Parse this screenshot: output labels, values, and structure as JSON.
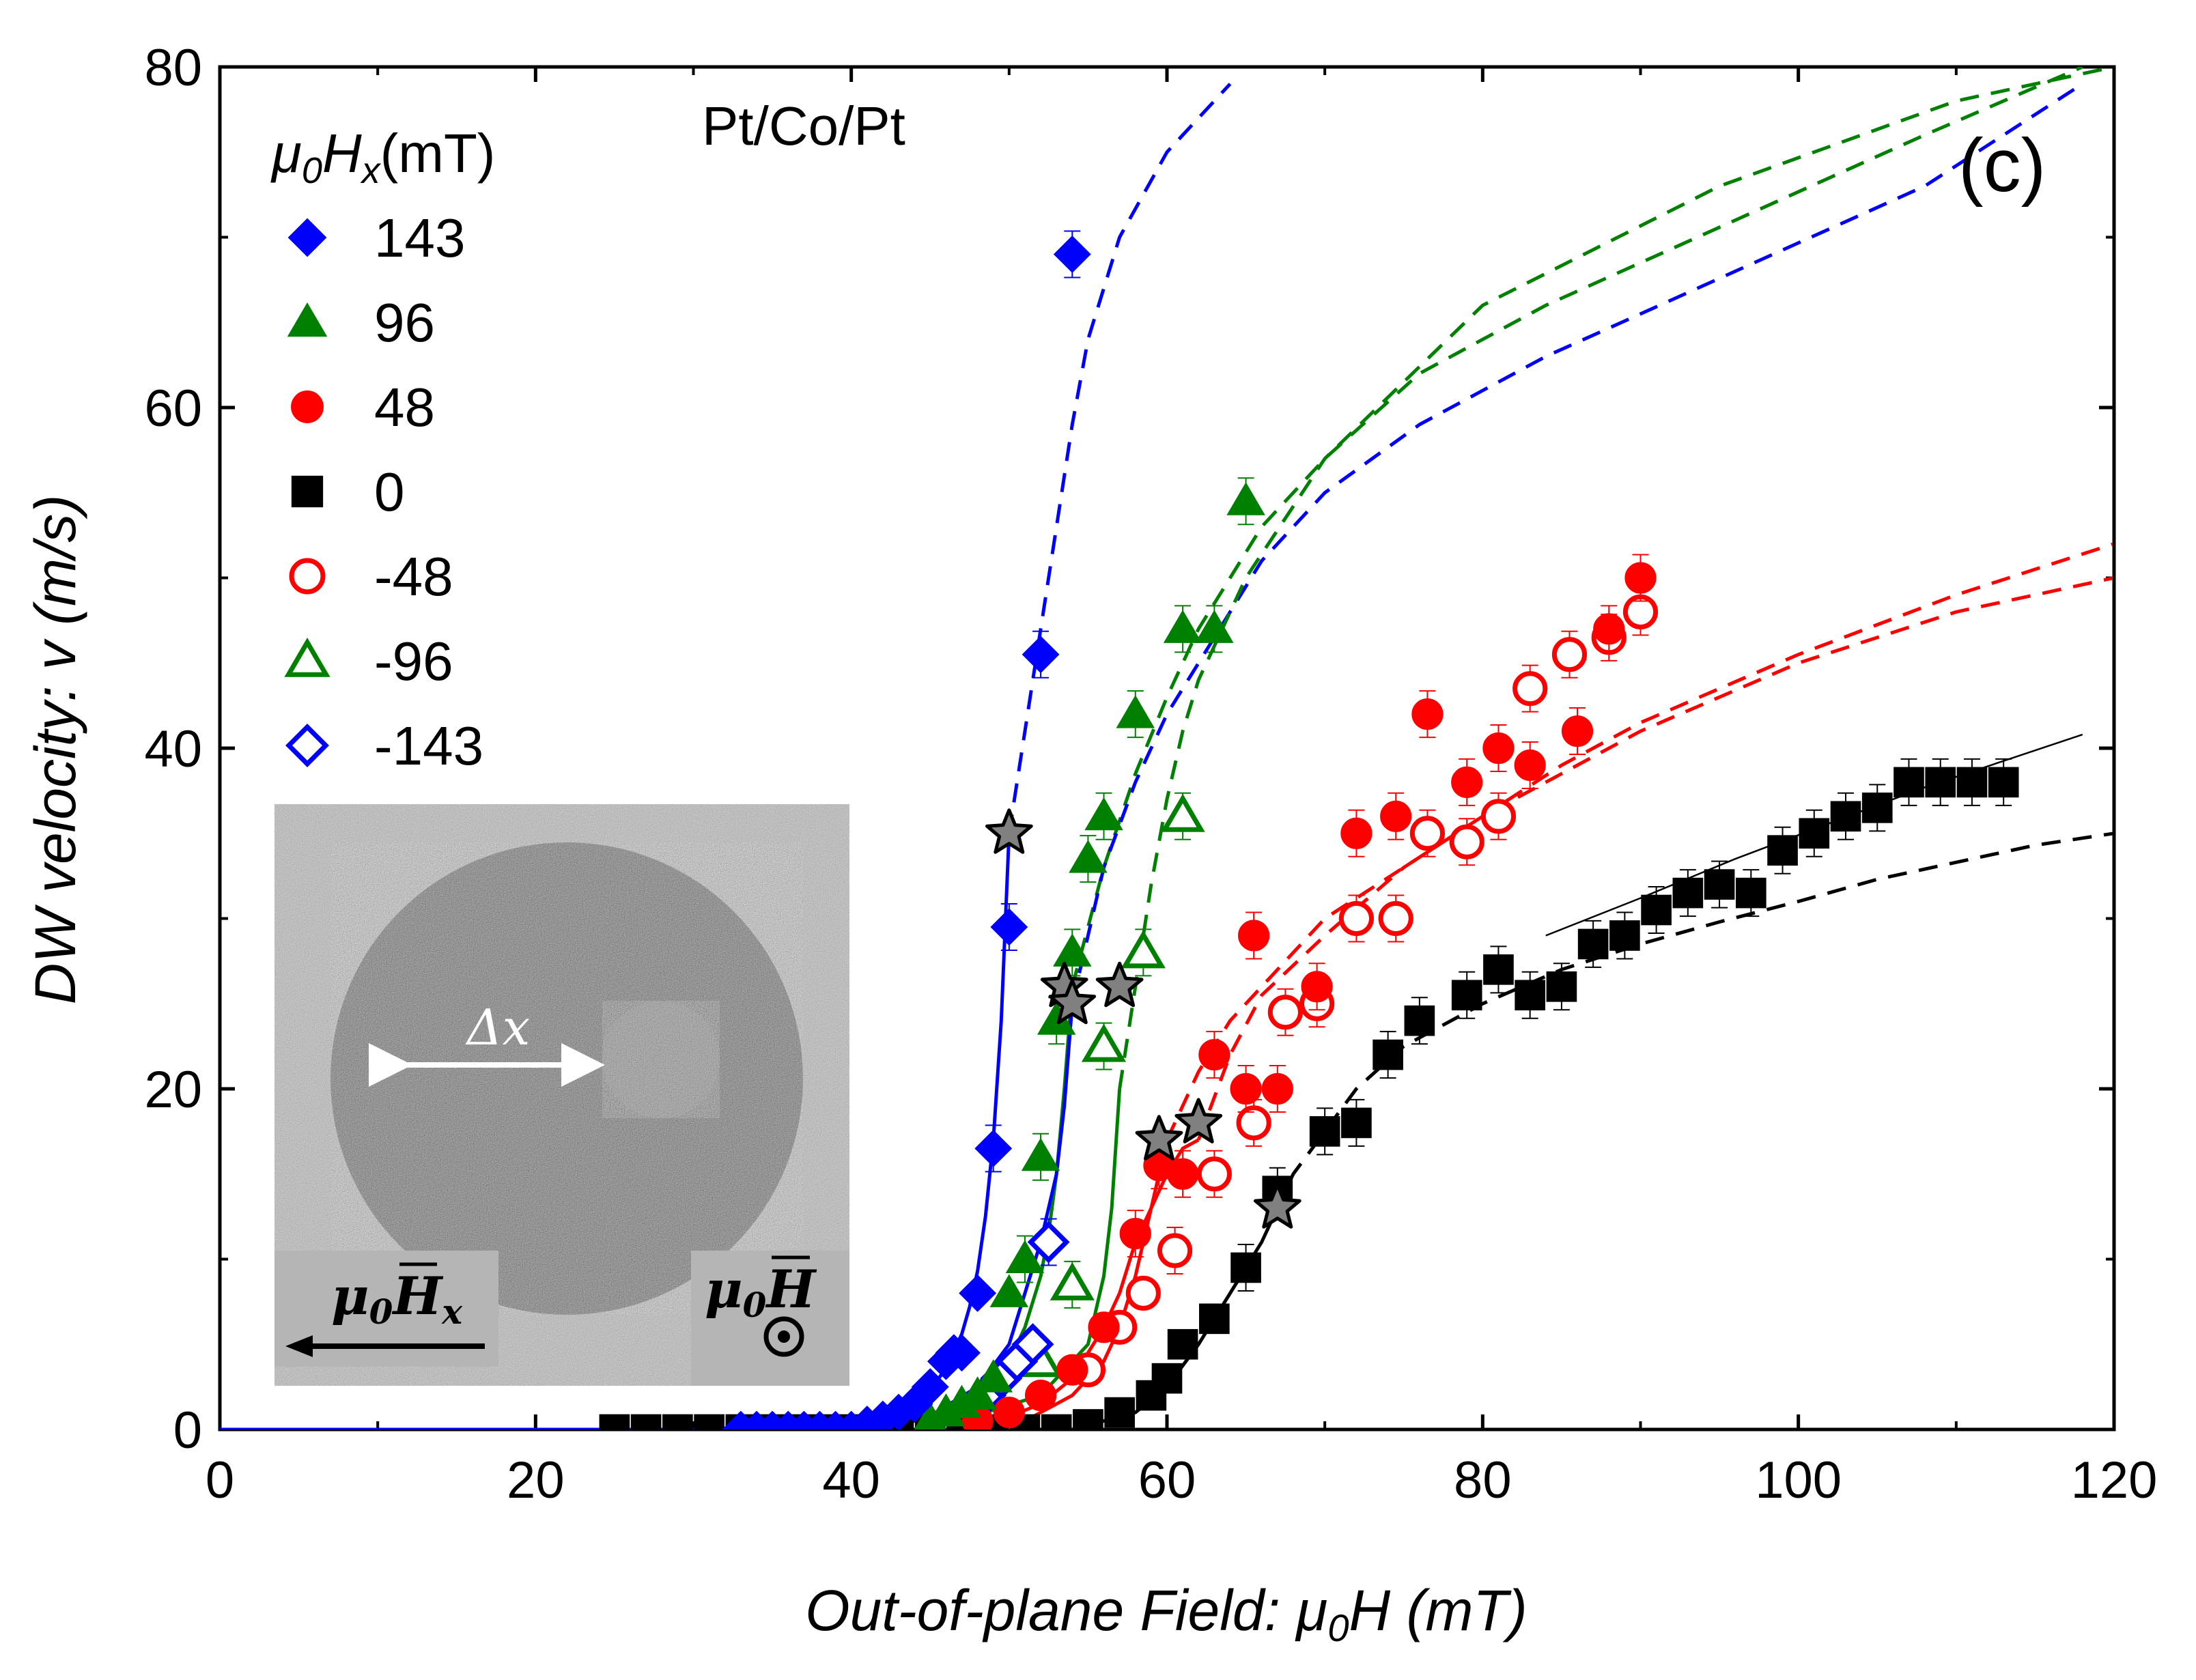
{
  "chart_data": {
    "type": "scatter",
    "title": "",
    "sample_label": "Pt/Co/Pt",
    "panel_label": "(c)",
    "xlabel": "Out-of-plane Field: μ0H (mT)",
    "xlabel_parts": {
      "before": "Out-of-plane Field: ",
      "mu": "μ",
      "sub": "0",
      "after": "H (mT)"
    },
    "ylabel": "DW velocity: v (m/s)",
    "xlim": [
      0,
      120
    ],
    "ylim": [
      0,
      80
    ],
    "xticks": [
      "0",
      "20",
      "40",
      "60",
      "80",
      "100",
      "120"
    ],
    "yticks": [
      "0",
      "20",
      "40",
      "60",
      "80"
    ],
    "legend_title": {
      "mu": "μ",
      "sub0": "0",
      "H": "H",
      "subx": "x",
      "unit": "(mT)"
    },
    "legend_placement": "top-left",
    "colors": {
      "blue": "#0000ff",
      "green": "#008000",
      "red": "#ff0000",
      "black": "#000000",
      "star": "#808080"
    },
    "series": [
      {
        "name": "143",
        "color": "#0000ff",
        "marker": "diamond",
        "filled": true,
        "x": [
          33,
          34,
          35,
          36,
          37,
          38,
          39,
          40,
          41,
          42,
          43,
          44,
          45,
          46,
          46.5,
          47,
          48,
          49,
          50,
          52,
          54
        ],
        "y": [
          0,
          0,
          0,
          0,
          0,
          0,
          0,
          0,
          0.3,
          0.6,
          1,
          1.5,
          2.5,
          4,
          4.5,
          4.5,
          8,
          16.5,
          29.5,
          45.5,
          69
        ]
      },
      {
        "name": "96",
        "color": "#008000",
        "marker": "triangle",
        "filled": true,
        "x": [
          45,
          46,
          47,
          48,
          49,
          50,
          51,
          52,
          53,
          54,
          55,
          56,
          58,
          61,
          63,
          65
        ],
        "y": [
          0.5,
          1,
          1.5,
          2,
          3,
          8,
          10,
          16,
          24,
          28,
          33.5,
          36,
          42,
          47,
          47,
          54.5
        ]
      },
      {
        "name": "48",
        "color": "#ff0000",
        "marker": "circle",
        "filled": true,
        "x": [
          48,
          50,
          52,
          54,
          56,
          58,
          59.5,
          61,
          63,
          65,
          65.5,
          67,
          69.5,
          72,
          74.5,
          76.5,
          79,
          81,
          83,
          86,
          88,
          90
        ],
        "y": [
          0.5,
          1,
          2,
          3.5,
          6,
          11.5,
          15.5,
          15,
          22,
          20,
          29,
          20,
          26,
          35,
          36,
          42,
          38,
          40,
          39,
          41,
          47,
          50
        ]
      },
      {
        "name": "0",
        "color": "#000000",
        "marker": "square",
        "filled": true,
        "x": [
          25,
          27,
          29,
          31,
          33,
          35,
          37,
          39,
          41,
          43,
          45,
          47,
          49,
          51,
          53,
          55,
          57,
          59,
          60,
          61,
          63,
          65,
          67,
          70,
          72,
          74,
          76,
          79,
          81,
          83,
          85,
          87,
          89,
          91,
          93,
          95,
          97,
          99,
          101,
          103,
          105,
          107,
          109,
          111,
          113
        ],
        "y": [
          0,
          0,
          0,
          0,
          0,
          0,
          0,
          0,
          0,
          0,
          0,
          0,
          0,
          0,
          0,
          0.3,
          1,
          2,
          3,
          5,
          6.5,
          9.5,
          14,
          17.5,
          18,
          22,
          24,
          25.5,
          27,
          25.5,
          26,
          28.5,
          29,
          30.5,
          31.5,
          32,
          31.5,
          34,
          35,
          36,
          36.5,
          38,
          38,
          38,
          38
        ]
      },
      {
        "name": "-48",
        "color": "#ff0000",
        "marker": "circle",
        "filled": false,
        "x": [
          55,
          57,
          58.5,
          60.5,
          63,
          65.5,
          67.5,
          69.5,
          72,
          74.5,
          76.5,
          79,
          81,
          83,
          85.5,
          88,
          90
        ],
        "y": [
          3.5,
          6,
          8,
          10.5,
          15,
          18,
          24.5,
          25,
          30,
          30,
          35,
          34.5,
          36,
          43.5,
          45.5,
          46.5,
          48
        ]
      },
      {
        "name": "-96",
        "color": "#008000",
        "marker": "triangle",
        "filled": false,
        "x": [
          52,
          54,
          56,
          58.5,
          61
        ],
        "y": [
          4,
          8.5,
          22.5,
          28,
          36
        ]
      },
      {
        "name": "-143",
        "color": "#0000ff",
        "marker": "diamond",
        "filled": false,
        "x": [
          47,
          48.5,
          49.5,
          50.5,
          51.5,
          52.5
        ],
        "y": [
          1,
          2,
          3,
          4,
          5,
          11
        ]
      }
    ],
    "fit_curves": [
      {
        "color": "#0000ff",
        "style": "solid",
        "x": [
          0,
          30,
          40,
          42,
          44,
          45,
          46,
          47,
          47.5,
          48,
          48.5,
          49,
          49.5,
          50
        ],
        "y": [
          0,
          0,
          0.3,
          0.8,
          1.6,
          2.3,
          3.6,
          5.6,
          7.2,
          9.3,
          12.5,
          17,
          24,
          35
        ]
      },
      {
        "color": "#0000ff",
        "style": "dashed",
        "x": [
          50,
          51,
          52,
          53,
          54,
          55,
          57,
          60,
          64
        ],
        "y": [
          35,
          41,
          47,
          53,
          59,
          64,
          70,
          75,
          79
        ]
      },
      {
        "color": "#008000",
        "style": "solid",
        "x": [
          42,
          46,
          48,
          50,
          51,
          52,
          52.5,
          53,
          53.5,
          54
        ],
        "y": [
          0,
          1,
          2,
          4,
          6,
          9,
          11.5,
          15,
          20,
          26
        ]
      },
      {
        "color": "#008000",
        "style": "dashed",
        "x": [
          54,
          56,
          58,
          60,
          62,
          64,
          66,
          70,
          76,
          84,
          96,
          108,
          118
        ],
        "y": [
          26,
          33,
          38.5,
          43,
          47,
          50,
          53,
          57,
          62,
          66,
          71,
          76,
          80
        ]
      },
      {
        "color": "#0000ff",
        "style": "solid",
        "x": [
          40,
          45,
          48,
          50,
          51,
          52,
          53,
          53.5,
          54
        ],
        "y": [
          0,
          0.8,
          2.5,
          5,
          8,
          11,
          15,
          19,
          25
        ]
      },
      {
        "color": "#0000ff",
        "style": "dashed",
        "x": [
          54,
          56,
          58,
          60,
          62,
          64,
          66,
          70,
          76,
          84,
          96,
          108,
          118
        ],
        "y": [
          25,
          33,
          38,
          42,
          45,
          48,
          51,
          55,
          59,
          63,
          68,
          73,
          79
        ]
      },
      {
        "color": "#008000",
        "style": "solid",
        "x": [
          45,
          52,
          55,
          56,
          56.5,
          57
        ],
        "y": [
          0,
          2,
          5,
          9,
          13,
          20
        ]
      },
      {
        "color": "#008000",
        "style": "dashed",
        "x": [
          57,
          58,
          59,
          60,
          61,
          62,
          63,
          65,
          70,
          80,
          95,
          110,
          120
        ],
        "y": [
          20,
          26,
          32,
          37,
          41,
          44,
          46,
          50,
          57,
          66,
          73,
          78,
          80
        ]
      },
      {
        "color": "#ff0000",
        "style": "solid",
        "x": [
          48,
          52,
          54,
          56,
          57,
          58,
          59,
          60,
          61,
          62
        ],
        "y": [
          0,
          1.5,
          3,
          6,
          8,
          11,
          13,
          15,
          16.5,
          17
        ]
      },
      {
        "color": "#ff0000",
        "style": "dashed",
        "x": [
          62,
          64,
          66,
          70,
          75,
          80,
          85,
          90,
          100,
          110,
          120
        ],
        "y": [
          17,
          22,
          25.5,
          29,
          33,
          36,
          39,
          41.5,
          45.5,
          49,
          52
        ]
      },
      {
        "color": "#ff0000",
        "style": "solid",
        "x": [
          50,
          54,
          56,
          57,
          58,
          59,
          60
        ],
        "y": [
          0,
          2,
          4,
          6,
          9,
          13,
          17
        ]
      },
      {
        "color": "#ff0000",
        "style": "dashed",
        "x": [
          60,
          62,
          64,
          66,
          70,
          75,
          80,
          85,
          90,
          100,
          110,
          120
        ],
        "y": [
          17,
          21,
          24,
          26,
          30,
          33,
          36,
          38.5,
          41,
          45,
          48,
          50
        ]
      },
      {
        "color": "#000000",
        "style": "solid",
        "x": [
          54,
          58,
          60,
          62,
          64,
          66,
          67
        ],
        "y": [
          0,
          1,
          2.5,
          5,
          8,
          11,
          13
        ]
      },
      {
        "color": "#000000",
        "style": "dashed",
        "x": [
          67,
          68,
          70,
          72,
          75,
          80,
          85,
          90,
          95,
          100,
          105,
          110,
          115,
          120
        ],
        "y": [
          13,
          15,
          17.5,
          20,
          22.5,
          25,
          27,
          28.5,
          29.8,
          31,
          32.3,
          33.3,
          34.3,
          35
        ]
      },
      {
        "color": "#000000",
        "style": "thin",
        "x": [
          84,
          90,
          96,
          102,
          108,
          118
        ],
        "y": [
          29,
          31.2,
          33.5,
          35.6,
          37.7,
          40.8
        ]
      }
    ],
    "stars": {
      "color": "#808080",
      "x": [
        50,
        53.5,
        54,
        57,
        59.5,
        62,
        67
      ],
      "y": [
        35,
        26,
        25,
        26,
        17,
        18,
        13
      ]
    },
    "inset": {
      "dx_label": "Δx",
      "hx_label": {
        "mu": "μ",
        "sub0": "0",
        "H": "H",
        "subx": "x"
      },
      "h_label": {
        "mu": "μ",
        "sub0": "0",
        "H": "H"
      }
    }
  }
}
